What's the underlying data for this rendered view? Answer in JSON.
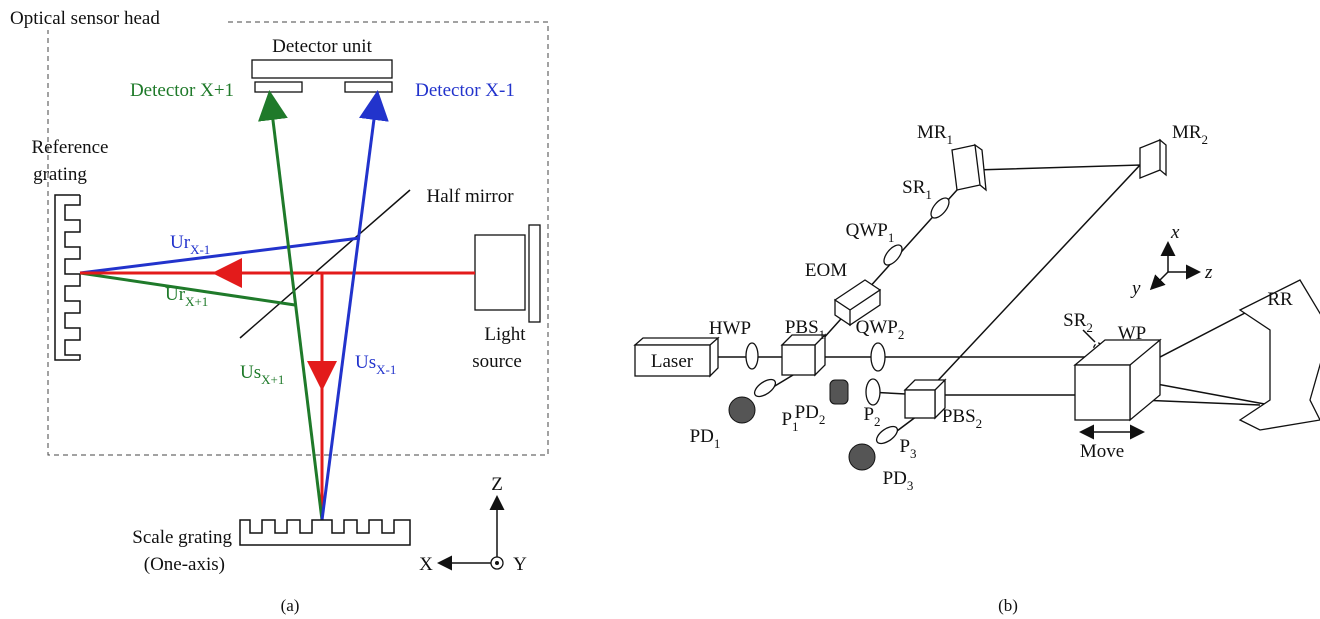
{
  "panel_a": {
    "title": "Optical sensor head",
    "detector_unit": "Detector unit",
    "detector_plus": "Detector X+1",
    "detector_minus": "Detector X-1",
    "reference_grating": [
      "Reference",
      "grating"
    ],
    "half_mirror": "Half mirror",
    "light_source": [
      "Light",
      "source"
    ],
    "ur_minus": {
      "main": "Ur",
      "sub": "X-1"
    },
    "ur_plus": {
      "main": "Ur",
      "sub": "X+1"
    },
    "us_plus": {
      "main": "Us",
      "sub": "X+1"
    },
    "us_minus": {
      "main": "Us",
      "sub": "X-1"
    },
    "scale_grating": [
      "Scale grating",
      "(One-axis)"
    ],
    "axes": {
      "z": "Z",
      "x": "X",
      "y": "Y"
    },
    "caption": "(a)"
  },
  "panel_b": {
    "laser": "Laser",
    "hwp": "HWP",
    "pbs1": {
      "main": "PBS",
      "sub": "1"
    },
    "eom": "EOM",
    "qwp1": {
      "main": "QWP",
      "sub": "1"
    },
    "sr1": {
      "main": "SR",
      "sub": "1"
    },
    "mr1": {
      "main": "MR",
      "sub": "1"
    },
    "mr2": {
      "main": "MR",
      "sub": "2"
    },
    "qwp2": {
      "main": "QWP",
      "sub": "2"
    },
    "sr2": {
      "main": "SR",
      "sub": "2"
    },
    "wp": "WP",
    "rr": "RR",
    "pbs2": {
      "main": "PBS",
      "sub": "2"
    },
    "p1": {
      "main": "P",
      "sub": "1"
    },
    "pd1": {
      "main": "PD",
      "sub": "1"
    },
    "pd2": {
      "main": "PD",
      "sub": "2"
    },
    "p2": {
      "main": "P",
      "sub": "2"
    },
    "p3": {
      "main": "P",
      "sub": "3"
    },
    "pd3": {
      "main": "PD",
      "sub": "3"
    },
    "move": "Move",
    "axes": {
      "x": "x",
      "y": "y",
      "z": "z"
    },
    "caption": "(b)"
  }
}
